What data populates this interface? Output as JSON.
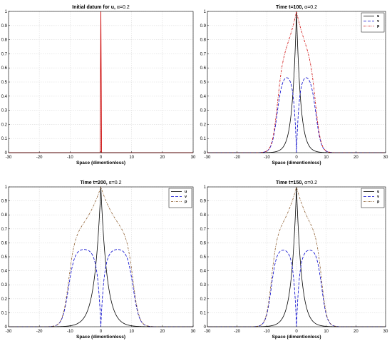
{
  "colors": {
    "u": "#000000",
    "v": "#0000cc",
    "p": "#cc0000",
    "p_late": "#8b5a2b",
    "grid": "#dcdcdc"
  },
  "chart_data": [
    {
      "type": "line",
      "title_prefix": "Initial datum for u, ",
      "title_alpha": "α=0.2",
      "xlabel": "Space (dimentionless)",
      "xlim": [
        -30,
        30
      ],
      "ylim": [
        0,
        1
      ],
      "xticks": [
        "-30",
        "-20",
        "-10",
        "0",
        "10",
        "20",
        "30"
      ],
      "yticks": [
        "0",
        "0.1",
        "0.2",
        "0.3",
        "0.4",
        "0.5",
        "0.6",
        "0.7",
        "0.8",
        "0.9",
        "1"
      ],
      "grid": true,
      "legend": null,
      "series": [
        {
          "name": "u",
          "style": "solid",
          "color": "#cc0000",
          "shape": "spike",
          "params": {
            "peak": 1,
            "width": 0.25
          }
        }
      ]
    },
    {
      "type": "line",
      "title_prefix": "Time t=100, ",
      "title_alpha": "α=0.2",
      "xlabel": "Space (dimentionless)",
      "xlim": [
        -30,
        30
      ],
      "ylim": [
        0,
        1
      ],
      "xticks": [
        "-30",
        "-20",
        "-10",
        "0",
        "10",
        "20",
        "30"
      ],
      "yticks": [
        "0",
        "0.1",
        "0.2",
        "0.3",
        "0.4",
        "0.5",
        "0.6",
        "0.7",
        "0.8",
        "0.9",
        "1"
      ],
      "grid": true,
      "legend": "top-right",
      "series": [
        {
          "name": "u",
          "style": "solid",
          "color": "#000000",
          "shape": "decay",
          "params": {
            "peak": 1,
            "scale": 1.4
          }
        },
        {
          "name": "v",
          "style": "dashed",
          "color": "#0000cc",
          "shape": "twinhump",
          "params": {
            "hump": 0.56,
            "center": 2.4,
            "edge": 6.5,
            "soft": 0.9,
            "dip": 0.9
          }
        },
        {
          "name": "p",
          "style": "dashdot",
          "color": "#cc0000",
          "shape": "envelope",
          "params": {
            "edge": 6.5,
            "soft": 0.9,
            "tail": 4.5
          }
        }
      ]
    },
    {
      "type": "line",
      "title_prefix": "Time t=200, ",
      "title_alpha": "α=0.2",
      "xlabel": "Space (dimentionless)",
      "xlim": [
        -30,
        30
      ],
      "ylim": [
        0,
        1
      ],
      "xticks": [
        "-30",
        "-20",
        "-10",
        "0",
        "10",
        "20",
        "30"
      ],
      "yticks": [
        "0",
        "0.1",
        "0.2",
        "0.3",
        "0.4",
        "0.5",
        "0.6",
        "0.7",
        "0.8",
        "0.9",
        "1"
      ],
      "grid": true,
      "legend": "top-right",
      "series": [
        {
          "name": "u",
          "style": "solid",
          "color": "#000000",
          "shape": "decay",
          "params": {
            "peak": 1,
            "scale": 2.0
          }
        },
        {
          "name": "v",
          "style": "dashed",
          "color": "#0000cc",
          "shape": "twinhump",
          "params": {
            "hump": 0.56,
            "center": 4.0,
            "edge": 10.5,
            "soft": 1.0,
            "dip": 1.1
          }
        },
        {
          "name": "p",
          "style": "dashdot",
          "color": "#8b5a2b",
          "shape": "envelope",
          "params": {
            "edge": 10.5,
            "soft": 1.0,
            "tail": 6.5
          }
        }
      ]
    },
    {
      "type": "line",
      "title_prefix": "Time t=150, ",
      "title_alpha": "α=0.2",
      "xlabel": "Space (dimentionless)",
      "xlim": [
        -30,
        30
      ],
      "ylim": [
        0,
        1
      ],
      "xticks": [
        "-30",
        "-20",
        "-10",
        "0",
        "10",
        "20",
        "30"
      ],
      "yticks": [
        "0",
        "0.1",
        "0.2",
        "0.3",
        "0.4",
        "0.5",
        "0.6",
        "0.7",
        "0.8",
        "0.9",
        "1"
      ],
      "grid": true,
      "legend": "top-right",
      "series": [
        {
          "name": "u",
          "style": "solid",
          "color": "#000000",
          "shape": "decay",
          "params": {
            "peak": 1,
            "scale": 1.7
          }
        },
        {
          "name": "v",
          "style": "dashed",
          "color": "#0000cc",
          "shape": "twinhump",
          "params": {
            "hump": 0.56,
            "center": 3.2,
            "edge": 8.5,
            "soft": 0.9,
            "dip": 1.0
          }
        },
        {
          "name": "p",
          "style": "dashdot",
          "color": "#8b5a2b",
          "shape": "envelope",
          "params": {
            "edge": 8.5,
            "soft": 0.9,
            "tail": 5.5
          }
        }
      ]
    }
  ]
}
